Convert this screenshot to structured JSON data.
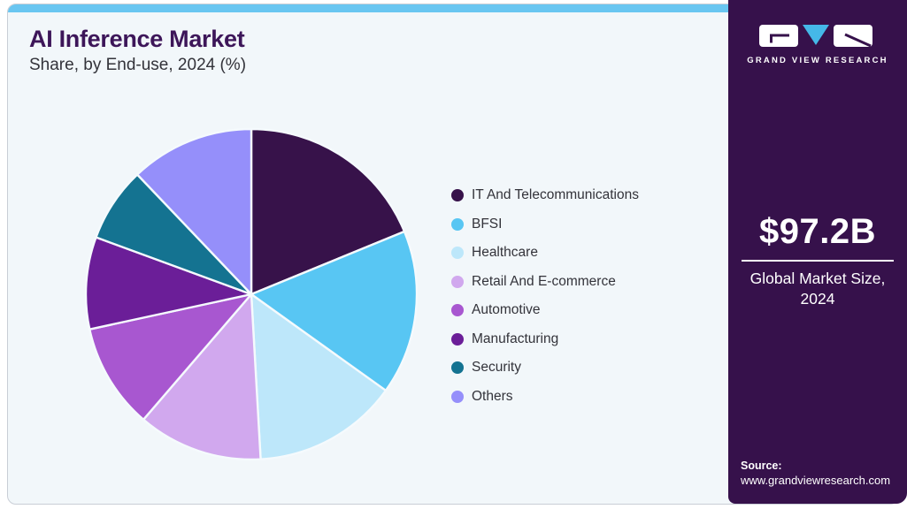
{
  "page": {
    "header": {
      "title": "AI Inference Market",
      "subtitle": "Share, by End-use, 2024 (%)"
    }
  },
  "chart_data": {
    "type": "pie",
    "title": "AI Inference Market Share, by End-use, 2024 (%)",
    "units": "% share",
    "start_angle_deg": 0,
    "direction": "clockwise",
    "legend_position": "right",
    "categories": [
      "IT And Telecommunications",
      "BFSI",
      "Healthcare",
      "Retail And E-commerce",
      "Automotive",
      "Manufacturing",
      "Security",
      "Others"
    ],
    "values": [
      18.8,
      16.1,
      14.2,
      12.2,
      10.3,
      9.0,
      7.3,
      12.1
    ],
    "colors": [
      "#37124a",
      "#58c6f3",
      "#bde7fa",
      "#d1a8ee",
      "#a857d0",
      "#6b1e98",
      "#147391",
      "#958ffa"
    ]
  },
  "sidebar": {
    "logo_brand": "GRAND VIEW RESEARCH",
    "market_size_value": "$97.2B",
    "market_size_label": "Global Market Size, 2024",
    "source_label": "Source:",
    "source_url": "www.grandviewresearch.com"
  },
  "theme": {
    "accent_top_bar": "#69c6f1",
    "card_background": "#f2f7fa",
    "card_border": "#c9ced6",
    "sidebar_background": "#36114b",
    "title_color": "#3d1659",
    "text_color": "#33333a",
    "logo_v_color": "#45b8e8",
    "slice_gap_color": "#f5fafd"
  }
}
